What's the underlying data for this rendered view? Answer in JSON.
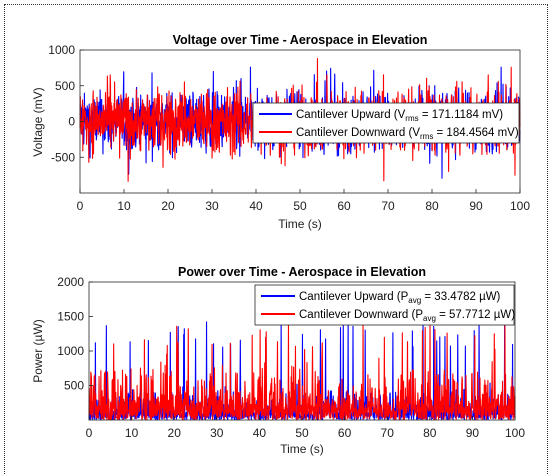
{
  "chart_data": [
    {
      "type": "line",
      "title": "Voltage over Time - Aerospace in Elevation",
      "xlabel": "Time (s)",
      "ylabel": "Voltage (mV)",
      "xlim": [
        0,
        100
      ],
      "ylim": [
        -1000,
        1000
      ],
      "xticks": [
        "0",
        "10",
        "20",
        "30",
        "40",
        "50",
        "60",
        "70",
        "80",
        "90",
        "100"
      ],
      "yticks": [
        "-500",
        "0",
        "500",
        "1000"
      ],
      "legend_position": "right",
      "series": [
        {
          "name": "Cantilever Upward (V_rms = 171.1184 mV)",
          "legend_prefix": "Cantilever Upward (V",
          "legend_sub": "rms",
          "legend_suffix": " = 171.1184 mV)",
          "color": "#0000ff",
          "rms": 171.1184,
          "min": -950,
          "max": 760
        },
        {
          "name": "Cantilever Downward (V_rms = 184.4564 mV)",
          "legend_prefix": "Cantilever Downward (V",
          "legend_sub": "rms",
          "legend_suffix": " = 184.4564 mV)",
          "color": "#ff0000",
          "rms": 184.4564,
          "min": -860,
          "max": 880
        }
      ]
    },
    {
      "type": "line",
      "title": "Power over Time - Aerospace in Elevation",
      "xlabel": "Time (s)",
      "ylabel": "Power (µW)",
      "xlim": [
        0,
        100
      ],
      "ylim": [
        0,
        2000
      ],
      "xticks": [
        "0",
        "10",
        "20",
        "30",
        "40",
        "50",
        "60",
        "70",
        "80",
        "90",
        "100"
      ],
      "yticks": [
        "500",
        "1000",
        "1500",
        "2000"
      ],
      "legend_position": "top-right",
      "series": [
        {
          "name": "Cantilever Upward (P_avg = 33.4782 µW)",
          "legend_prefix": "Cantilever Upward (P",
          "legend_sub": "avg",
          "legend_suffix": " = 33.4782 µW)",
          "color": "#0000ff",
          "avg": 33.4782,
          "max": 1500
        },
        {
          "name": "Cantilever Downward (P_avg = 57.7712 µW)",
          "legend_prefix": "Cantilever Downward (P",
          "legend_sub": "avg",
          "legend_suffix": " = 57.7712 µW)",
          "color": "#ff0000",
          "avg": 57.7712,
          "max": 1450
        }
      ]
    }
  ]
}
